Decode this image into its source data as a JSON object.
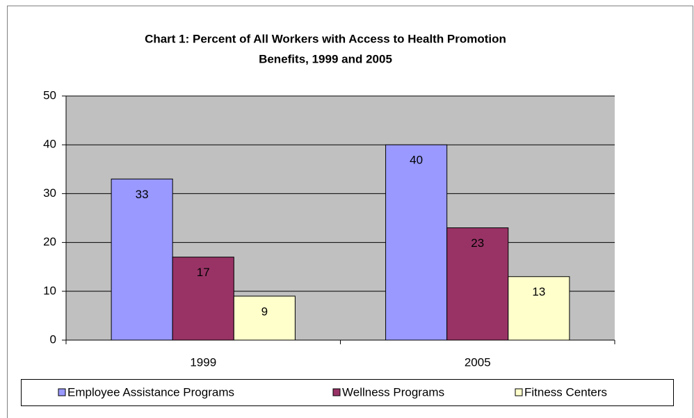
{
  "chart_data": {
    "type": "bar",
    "title": [
      "Chart 1: Percent of All Workers with Access to Health Promotion",
      "Benefits, 1999 and 2005"
    ],
    "categories": [
      "1999",
      "2005"
    ],
    "series": [
      {
        "name": "Employee Assistance Programs",
        "color": "#9999ff",
        "values": [
          33,
          40
        ]
      },
      {
        "name": "Wellness Programs",
        "color": "#993366",
        "values": [
          17,
          23
        ]
      },
      {
        "name": "Fitness Centers",
        "color": "#ffffcc",
        "values": [
          9,
          13
        ]
      }
    ],
    "ylim": [
      0,
      50
    ],
    "yticks": [
      0,
      10,
      20,
      30,
      40,
      50
    ],
    "grid": true,
    "legend": "bottom"
  }
}
